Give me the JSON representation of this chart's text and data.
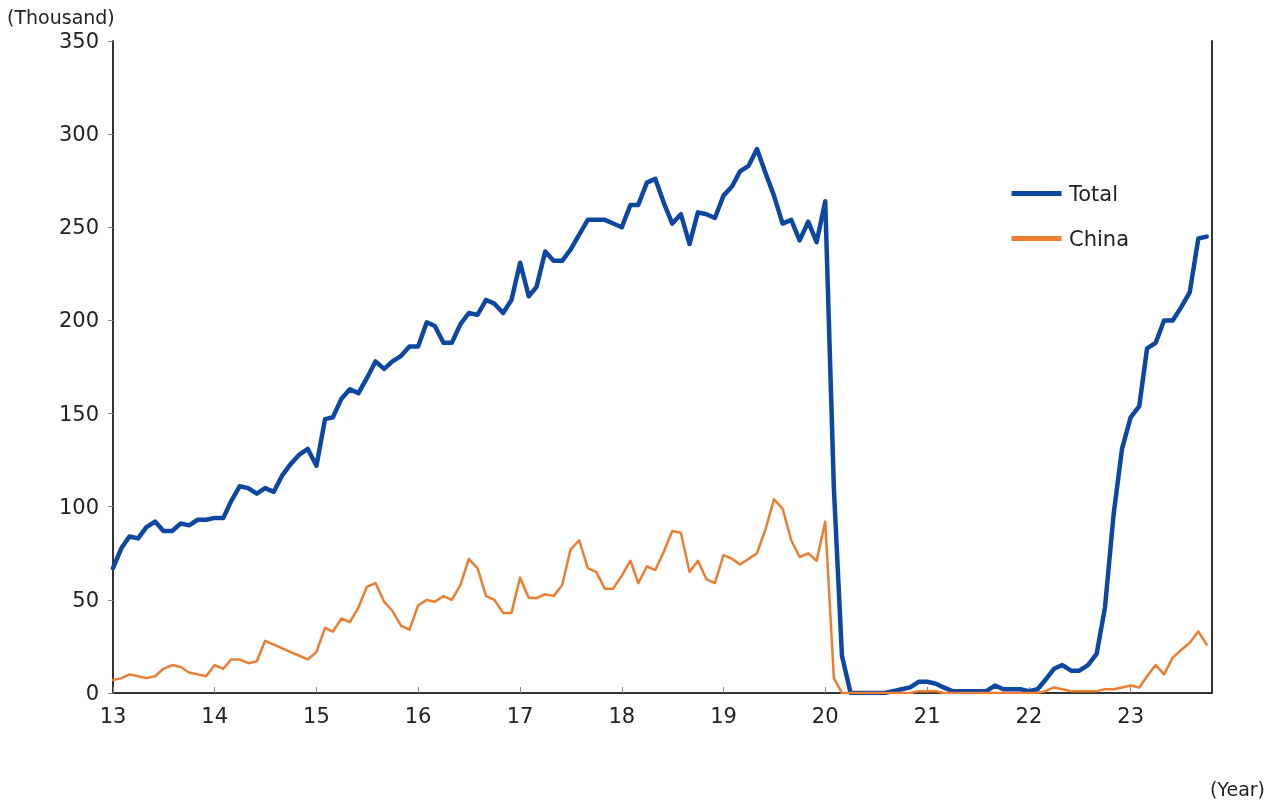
{
  "chart_data": {
    "type": "line",
    "ylabel": "(Thousand)",
    "xlabel": "(Year)",
    "x": [
      "2013-01",
      "2013-02",
      "2013-03",
      "2013-04",
      "2013-05",
      "2013-06",
      "2013-07",
      "2013-08",
      "2013-09",
      "2013-10",
      "2013-11",
      "2013-12",
      "2014-01",
      "2014-02",
      "2014-03",
      "2014-04",
      "2014-05",
      "2014-06",
      "2014-07",
      "2014-08",
      "2014-09",
      "2014-10",
      "2014-11",
      "2014-12",
      "2015-01",
      "2015-02",
      "2015-03",
      "2015-04",
      "2015-05",
      "2015-06",
      "2015-07",
      "2015-08",
      "2015-09",
      "2015-10",
      "2015-11",
      "2015-12",
      "2016-01",
      "2016-02",
      "2016-03",
      "2016-04",
      "2016-05",
      "2016-06",
      "2016-07",
      "2016-08",
      "2016-09",
      "2016-10",
      "2016-11",
      "2016-12",
      "2017-01",
      "2017-02",
      "2017-03",
      "2017-04",
      "2017-05",
      "2017-06",
      "2017-07",
      "2017-08",
      "2017-09",
      "2017-10",
      "2017-11",
      "2017-12",
      "2018-01",
      "2018-02",
      "2018-03",
      "2018-04",
      "2018-05",
      "2018-06",
      "2018-07",
      "2018-08",
      "2018-09",
      "2018-10",
      "2018-11",
      "2018-12",
      "2019-01",
      "2019-02",
      "2019-03",
      "2019-04",
      "2019-05",
      "2019-06",
      "2019-07",
      "2019-08",
      "2019-09",
      "2019-10",
      "2019-11",
      "2019-12",
      "2020-01",
      "2020-02",
      "2020-03",
      "2020-04",
      "2020-05",
      "2020-06",
      "2020-07",
      "2020-08",
      "2020-09",
      "2020-10",
      "2020-11",
      "2020-12",
      "2021-01",
      "2021-02",
      "2021-03",
      "2021-04",
      "2021-05",
      "2021-06",
      "2021-07",
      "2021-08",
      "2021-09",
      "2021-10",
      "2021-11",
      "2021-12",
      "2022-01",
      "2022-02",
      "2022-03",
      "2022-04",
      "2022-05",
      "2022-06",
      "2022-07",
      "2022-08",
      "2022-09",
      "2022-10",
      "2022-11",
      "2022-12",
      "2023-01",
      "2023-02",
      "2023-03",
      "2023-04",
      "2023-05",
      "2023-06",
      "2023-07",
      "2023-08",
      "2023-09",
      "2023-10"
    ],
    "series": [
      {
        "name": "Total",
        "color": "#0d47a1",
        "values": [
          67,
          78,
          84,
          83,
          89,
          92,
          87,
          87,
          91,
          90,
          93,
          93,
          94,
          94,
          103,
          111,
          110,
          107,
          110,
          108,
          117,
          123,
          128,
          131,
          122,
          147,
          148,
          158,
          163,
          161,
          169,
          178,
          174,
          178,
          181,
          186,
          186,
          199,
          197,
          188,
          188,
          198,
          204,
          203,
          211,
          209,
          204,
          211,
          231,
          213,
          218,
          237,
          232,
          232,
          238,
          246,
          254,
          254,
          254,
          252,
          250,
          262,
          262,
          274,
          276,
          263,
          252,
          257,
          241,
          258,
          257,
          255,
          267,
          272,
          280,
          283,
          292,
          279,
          267,
          252,
          254,
          243,
          253,
          242,
          264,
          110,
          20,
          0,
          0,
          0,
          0,
          0,
          1,
          2,
          3,
          6,
          6,
          5,
          3,
          1,
          1,
          1,
          1,
          1,
          4,
          2,
          2,
          2,
          1,
          2,
          7,
          13,
          15,
          12,
          12,
          15,
          21,
          46,
          96,
          131,
          148,
          154,
          185,
          188,
          200,
          200,
          207,
          215,
          244,
          245
        ]
      },
      {
        "name": "China",
        "color": "#ed7d31",
        "values": [
          7,
          8,
          10,
          9,
          8,
          9,
          13,
          15,
          14,
          11,
          10,
          9,
          15,
          13,
          18,
          18,
          16,
          17,
          28,
          26,
          24,
          22,
          20,
          18,
          22,
          35,
          33,
          40,
          38,
          46,
          57,
          59,
          49,
          44,
          36,
          34,
          47,
          50,
          49,
          52,
          50,
          58,
          72,
          67,
          52,
          50,
          43,
          43,
          62,
          51,
          51,
          53,
          52,
          58,
          77,
          82,
          67,
          65,
          56,
          56,
          63,
          71,
          59,
          68,
          66,
          76,
          87,
          86,
          65,
          71,
          61,
          59,
          74,
          72,
          69,
          72,
          75,
          88,
          104,
          99,
          82,
          73,
          75,
          71,
          92,
          8,
          0,
          0,
          0,
          0,
          0,
          0,
          0,
          0,
          0,
          1,
          1,
          1,
          0,
          0,
          0,
          0,
          0,
          0,
          0,
          0,
          0,
          0,
          0,
          0,
          1,
          3,
          2,
          1,
          1,
          1,
          1,
          2,
          2,
          3,
          4,
          3,
          9,
          15,
          10,
          19,
          23,
          27,
          33,
          26
        ]
      }
    ],
    "xlim": [
      "2013-01",
      "2023-10-20"
    ],
    "xticks": [
      {
        "value": "2013",
        "label": "13"
      },
      {
        "value": "2014",
        "label": "14"
      },
      {
        "value": "2015",
        "label": "15"
      },
      {
        "value": "2016",
        "label": "16"
      },
      {
        "value": "2017",
        "label": "17"
      },
      {
        "value": "2018",
        "label": "18"
      },
      {
        "value": "2019",
        "label": "19"
      },
      {
        "value": "2020",
        "label": "20"
      },
      {
        "value": "2021",
        "label": "21"
      },
      {
        "value": "2022",
        "label": "22"
      },
      {
        "value": "2023",
        "label": "23"
      }
    ],
    "ylim": [
      0,
      350
    ],
    "yticks": [
      0,
      50,
      100,
      150,
      200,
      250,
      300,
      350
    ],
    "legend": "top right",
    "grid": false,
    "marker": "none",
    "line_style": "solid"
  }
}
